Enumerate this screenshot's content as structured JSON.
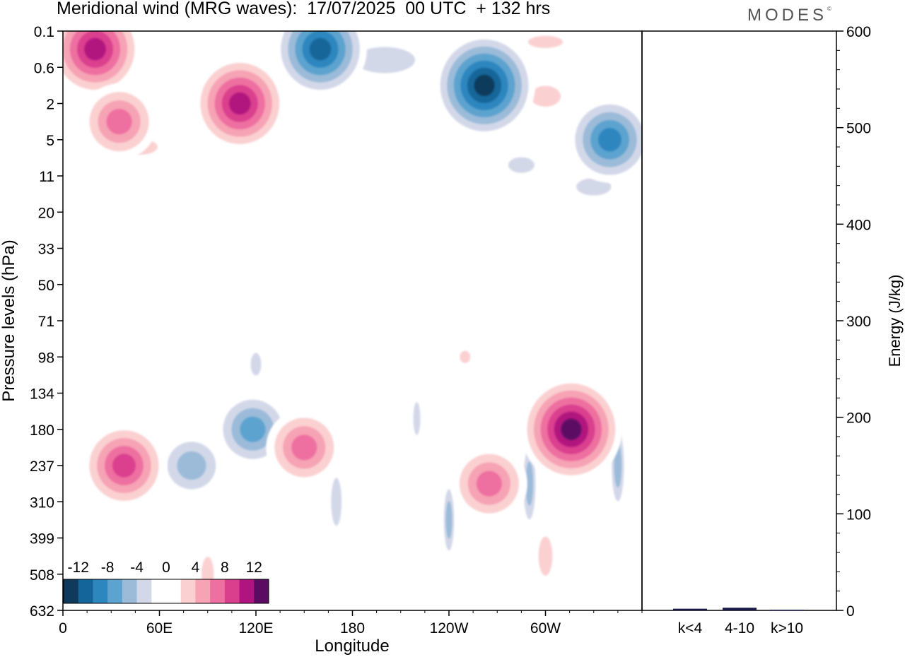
{
  "title": "Meridional wind (MRG waves):  17/07/2025  00 UTC  + 132 hrs",
  "brand": "MODES",
  "brand_mark": "©",
  "chart_data": [
    {
      "type": "heatmap",
      "title": "Meridional wind (MRG waves):  17/07/2025  00 UTC  + 132 hrs",
      "xlabel": "Longitude",
      "ylabel": "Pressure levels (hPa)",
      "x_ticks": [
        "0",
        "60E",
        "120E",
        "180",
        "120W",
        "60W"
      ],
      "x_tick_values": [
        0,
        60,
        120,
        180,
        240,
        300
      ],
      "xlim": [
        0,
        360
      ],
      "y_ticks": [
        "0.1",
        "0.6",
        "2",
        "5",
        "11",
        "20",
        "33",
        "50",
        "71",
        "98",
        "134",
        "180",
        "237",
        "310",
        "399",
        "508",
        "632"
      ],
      "y_axis": "model levels, top 0.1 hPa, bottom 632 hPa",
      "colorbar": {
        "labels": [
          "-12",
          "-8",
          "-4",
          "0",
          "4",
          "8",
          "12"
        ],
        "levels": [
          -14,
          -12,
          -10,
          -8,
          -6,
          -4,
          -2,
          0,
          2,
          4,
          6,
          8,
          10,
          12,
          14
        ],
        "colors": [
          "#0f3a5c",
          "#14669a",
          "#2e86bf",
          "#5da3cf",
          "#9bbbd9",
          "#d3d8e9",
          "#ffffff",
          "#ffffff",
          "#fbd0d1",
          "#f6a3b5",
          "#ee70a0",
          "#da3f8e",
          "#b0147e",
          "#5c0b63"
        ]
      },
      "features": [
        {
          "kind": "positive",
          "lon": 20,
          "level": "0.1-0.6",
          "value": 12
        },
        {
          "kind": "positive",
          "lon": 110,
          "level": "2",
          "value": 12
        },
        {
          "kind": "positive",
          "lon": 35,
          "level": "2-5",
          "value": 8
        },
        {
          "kind": "negative",
          "lon": 160,
          "level": "0.1-0.6",
          "value": -12
        },
        {
          "kind": "negative",
          "lon": 262,
          "level": "0.6-2",
          "value": -14
        },
        {
          "kind": "negative",
          "lon": 340,
          "level": "5",
          "value": -10
        },
        {
          "kind": "negative",
          "lon": 118,
          "level": "180",
          "value": -8
        },
        {
          "kind": "negative",
          "lon": 80,
          "level": "180-310",
          "value": -6
        },
        {
          "kind": "positive",
          "lon": 38,
          "level": "237",
          "value": 10
        },
        {
          "kind": "positive",
          "lon": 150,
          "level": "180-237",
          "value": 8
        },
        {
          "kind": "positive",
          "lon": 265,
          "level": "237-310",
          "value": 8
        },
        {
          "kind": "positive",
          "lon": 316,
          "level": "180",
          "value": 14
        }
      ]
    },
    {
      "type": "bar",
      "categories": [
        "k<4",
        "4-10",
        "k>10"
      ],
      "values": [
        1,
        2,
        0
      ],
      "ylabel": "Energy (J/kg)",
      "ylim": [
        0,
        600
      ],
      "y_ticks": [
        0,
        100,
        200,
        300,
        400,
        500,
        600
      ],
      "bar_color": "#1a1a4a"
    }
  ]
}
